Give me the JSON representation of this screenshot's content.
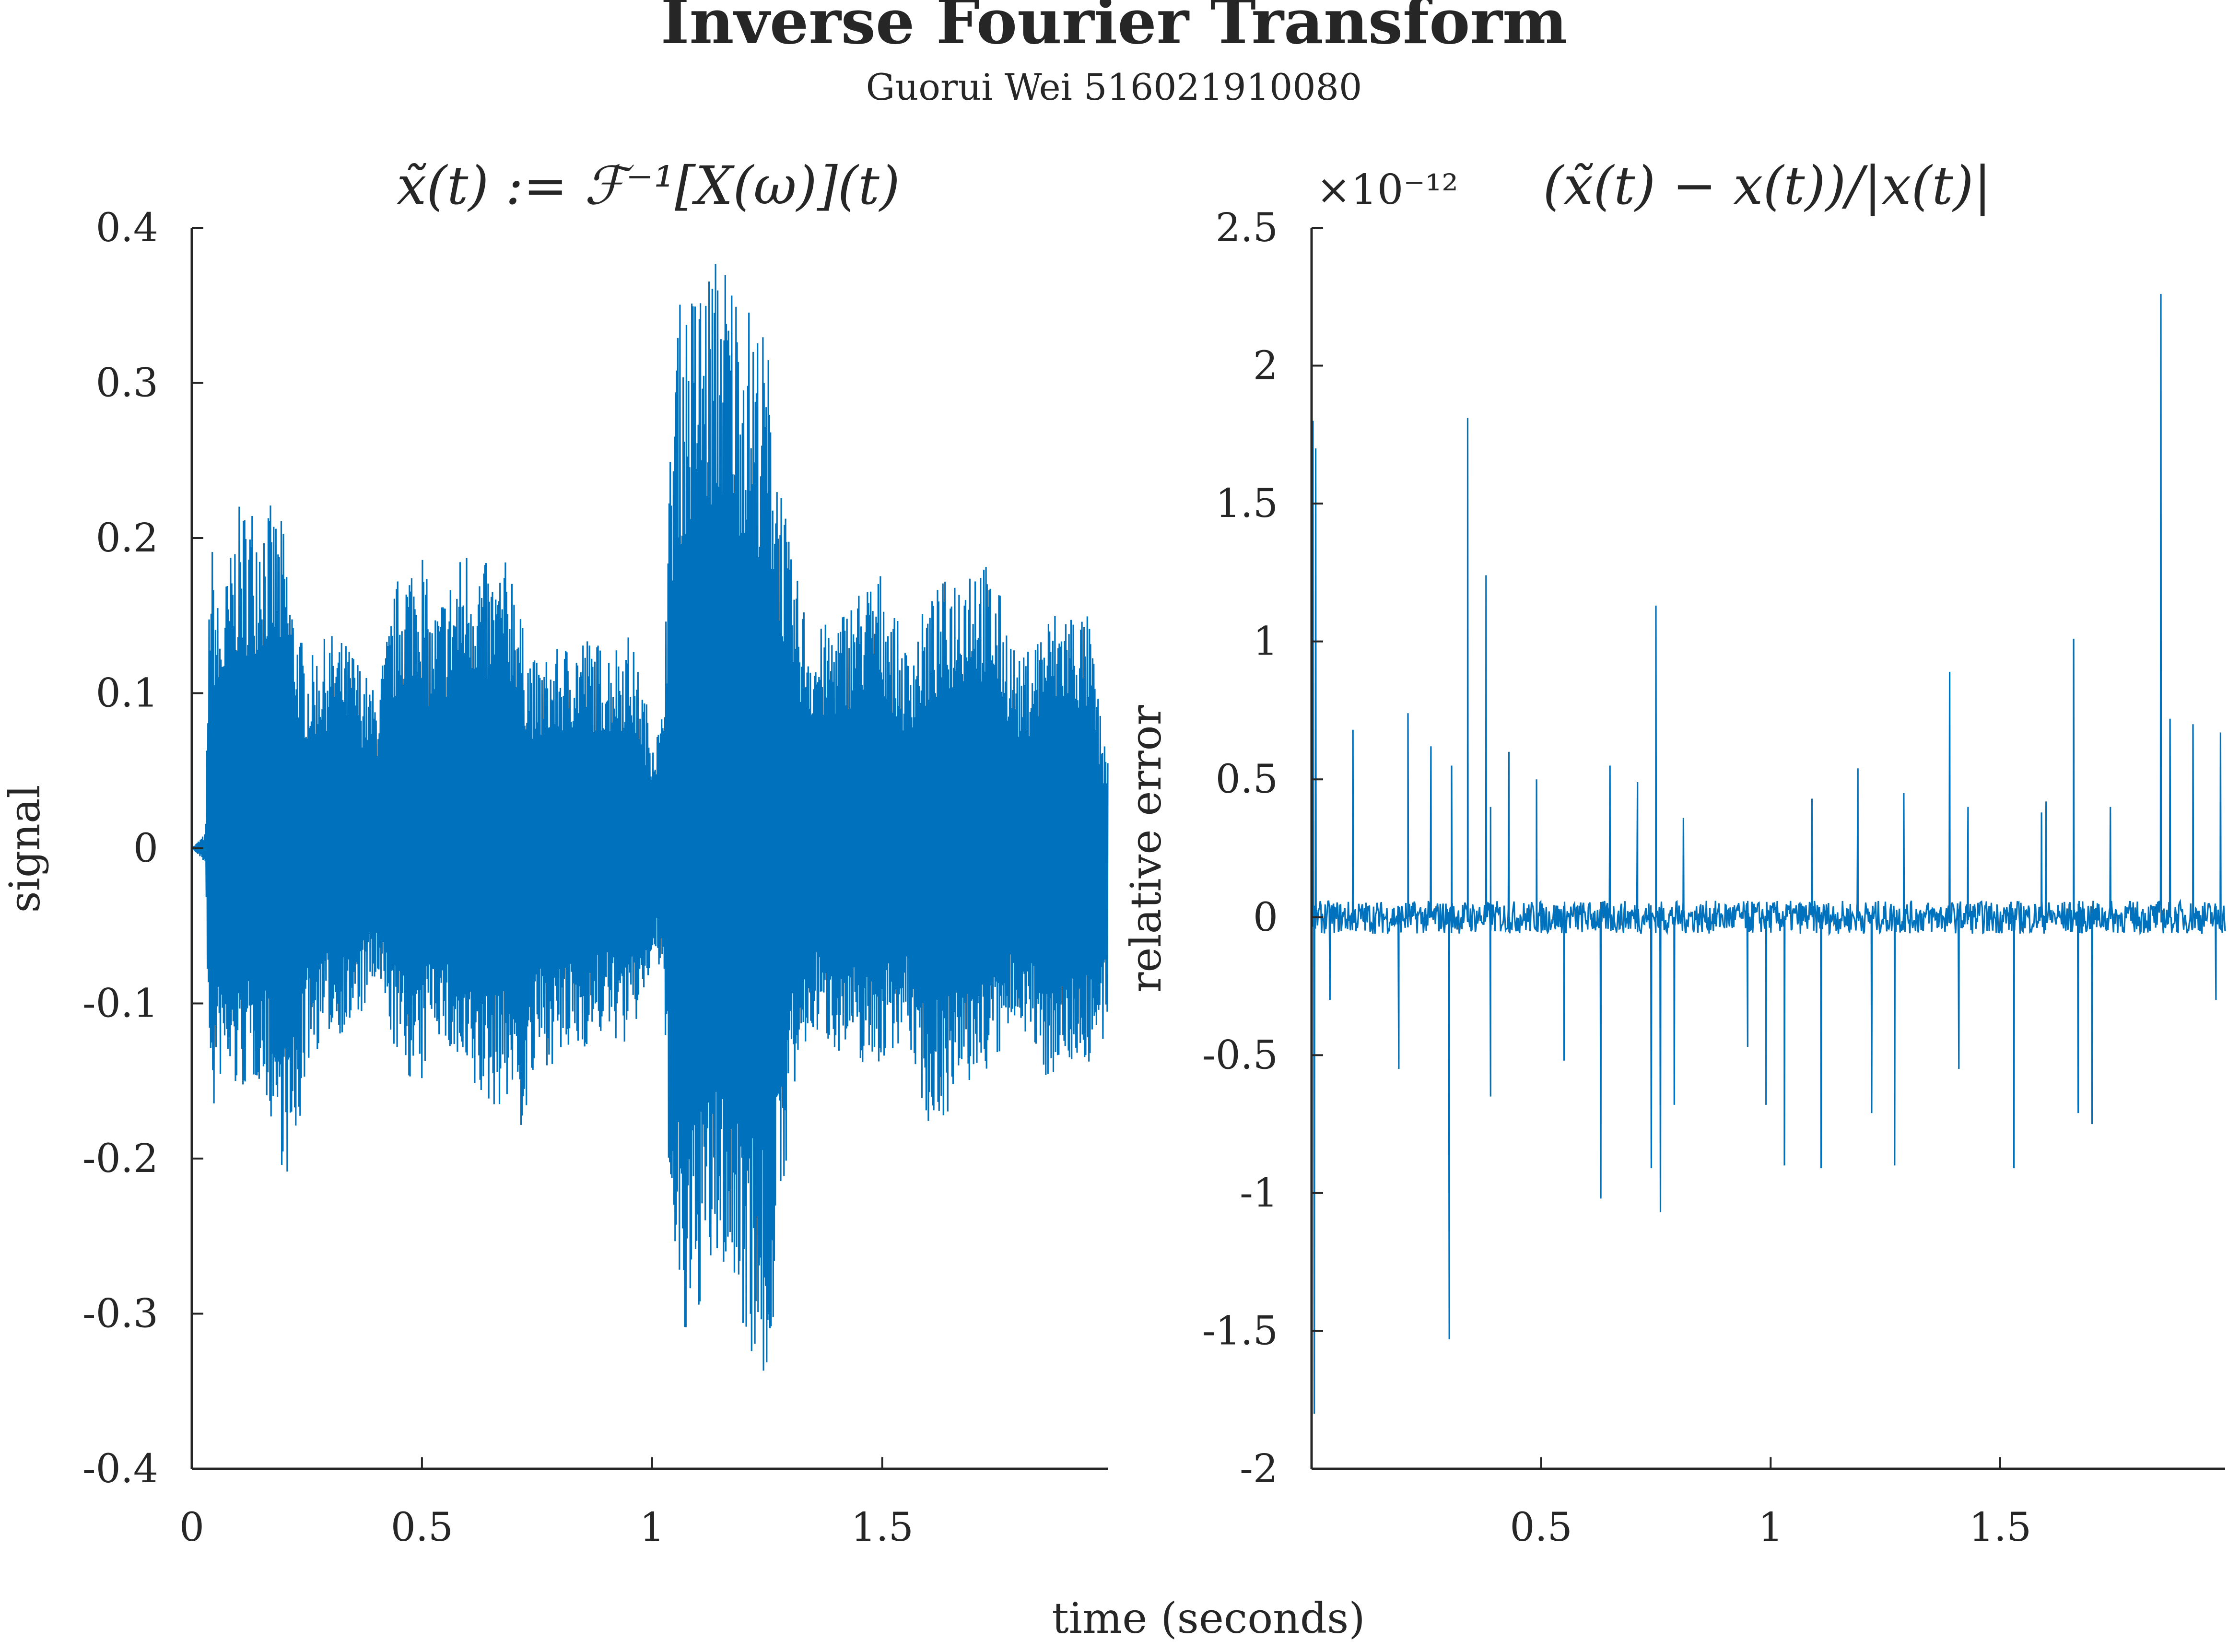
{
  "figure": {
    "title": "Inverse Fourier Transform",
    "subtitle": "Guorui Wei 516021910080",
    "xlabel": "time (seconds)",
    "color": "#0072BD"
  },
  "chart_data": [
    {
      "type": "line",
      "title": "x̃(t) := ℱ⁻¹[X(ω)](t)",
      "xlabel": "time (seconds)",
      "ylabel": "signal",
      "xlim": [
        0,
        1.99
      ],
      "ylim": [
        -0.4,
        0.4
      ],
      "xticks": [
        0,
        0.5,
        1,
        1.5
      ],
      "xtick_labels": [
        "0",
        "0.5",
        "1",
        "1.5"
      ],
      "yticks": [
        0.4,
        0.3,
        0.2,
        0.1,
        0,
        -0.1,
        -0.2,
        -0.3,
        -0.4
      ],
      "ytick_labels": [
        "0.4",
        "0.3",
        "0.2",
        "0.1",
        "0",
        "-0.1",
        "-0.2",
        "-0.3",
        "-0.4"
      ],
      "grid": false,
      "series": [
        {
          "color": "#0072BD",
          "envelope": {
            "t": [
              0.0,
              0.03,
              0.04,
              0.06,
              0.1,
              0.15,
              0.2,
              0.22,
              0.25,
              0.3,
              0.35,
              0.4,
              0.45,
              0.5,
              0.52,
              0.55,
              0.6,
              0.65,
              0.7,
              0.72,
              0.75,
              0.8,
              0.85,
              0.9,
              0.95,
              1.0,
              1.02,
              1.05,
              1.08,
              1.1,
              1.15,
              1.2,
              1.25,
              1.3,
              1.35,
              1.4,
              1.45,
              1.5,
              1.55,
              1.6,
              1.65,
              1.7,
              1.75,
              1.8,
              1.85,
              1.9,
              1.95,
              1.98
            ],
            "upper": [
              0.0,
              0.01,
              0.21,
              0.15,
              0.22,
              0.23,
              0.21,
              0.16,
              0.12,
              0.14,
              0.13,
              0.1,
              0.18,
              0.2,
              0.15,
              0.17,
              0.2,
              0.18,
              0.19,
              0.14,
              0.12,
              0.13,
              0.14,
              0.13,
              0.14,
              0.08,
              0.08,
              0.35,
              0.36,
              0.37,
              0.39,
              0.36,
              0.33,
              0.19,
              0.14,
              0.15,
              0.17,
              0.18,
              0.13,
              0.16,
              0.18,
              0.2,
              0.17,
              0.12,
              0.15,
              0.16,
              0.15,
              0.07
            ],
            "lower": [
              0.0,
              -0.01,
              -0.19,
              -0.15,
              -0.16,
              -0.15,
              -0.21,
              -0.22,
              -0.14,
              -0.12,
              -0.12,
              -0.09,
              -0.14,
              -0.16,
              -0.11,
              -0.13,
              -0.16,
              -0.17,
              -0.16,
              -0.19,
              -0.14,
              -0.14,
              -0.13,
              -0.12,
              -0.13,
              -0.08,
              -0.08,
              -0.31,
              -0.34,
              -0.3,
              -0.27,
              -0.31,
              -0.36,
              -0.17,
              -0.12,
              -0.13,
              -0.14,
              -0.14,
              -0.12,
              -0.18,
              -0.17,
              -0.15,
              -0.14,
              -0.11,
              -0.15,
              -0.14,
              -0.14,
              -0.13
            ]
          }
        }
      ]
    },
    {
      "type": "line",
      "title": "(x̃(t) − x(t))/|x(t)|",
      "ylabel": "relative error",
      "y_exponent": "×10⁻¹²",
      "xlim": [
        0,
        1.99
      ],
      "ylim": [
        -2,
        2.5
      ],
      "xticks": [
        0.5,
        1,
        1.5
      ],
      "xtick_labels": [
        "0.5",
        "1",
        "1.5"
      ],
      "yticks": [
        2.5,
        2,
        1.5,
        1,
        0.5,
        0,
        -0.5,
        -1,
        -1.5,
        -2
      ],
      "ytick_labels": [
        "2.5",
        "2",
        "1.5",
        "1",
        "0.5",
        "0",
        "-0.5",
        "-1",
        "-1.5",
        "-2"
      ],
      "grid": false,
      "series": [
        {
          "color": "#0072BD",
          "spikes": {
            "t": [
              0.003,
              0.006,
              0.009,
              0.04,
              0.09,
              0.19,
              0.21,
              0.26,
              0.3,
              0.305,
              0.34,
              0.38,
              0.39,
              0.39,
              0.43,
              0.49,
              0.55,
              0.63,
              0.65,
              0.71,
              0.74,
              0.75,
              0.76,
              0.79,
              0.81,
              0.95,
              0.99,
              1.03,
              1.09,
              1.11,
              1.19,
              1.22,
              1.27,
              1.29,
              1.39,
              1.41,
              1.43,
              1.53,
              1.59,
              1.6,
              1.66,
              1.67,
              1.7,
              1.74,
              1.85,
              1.87,
              1.92,
              1.97,
              1.98
            ],
            "v": [
              1.8,
              -1.8,
              1.7,
              -0.3,
              0.68,
              -0.55,
              0.74,
              0.62,
              -1.53,
              0.55,
              1.81,
              1.24,
              -0.65,
              0.4,
              0.6,
              0.5,
              -0.52,
              -1.02,
              0.55,
              0.49,
              -0.91,
              1.13,
              -1.07,
              -0.68,
              0.36,
              -0.47,
              -0.68,
              -0.9,
              0.43,
              -0.91,
              0.54,
              -0.71,
              -0.9,
              0.45,
              0.89,
              -0.55,
              0.4,
              -0.91,
              0.38,
              0.42,
              1.01,
              -0.71,
              -0.75,
              0.4,
              2.26,
              0.72,
              0.7,
              -0.3,
              0.67
            ]
          },
          "noise_amplitude": 0.06
        }
      ]
    }
  ]
}
